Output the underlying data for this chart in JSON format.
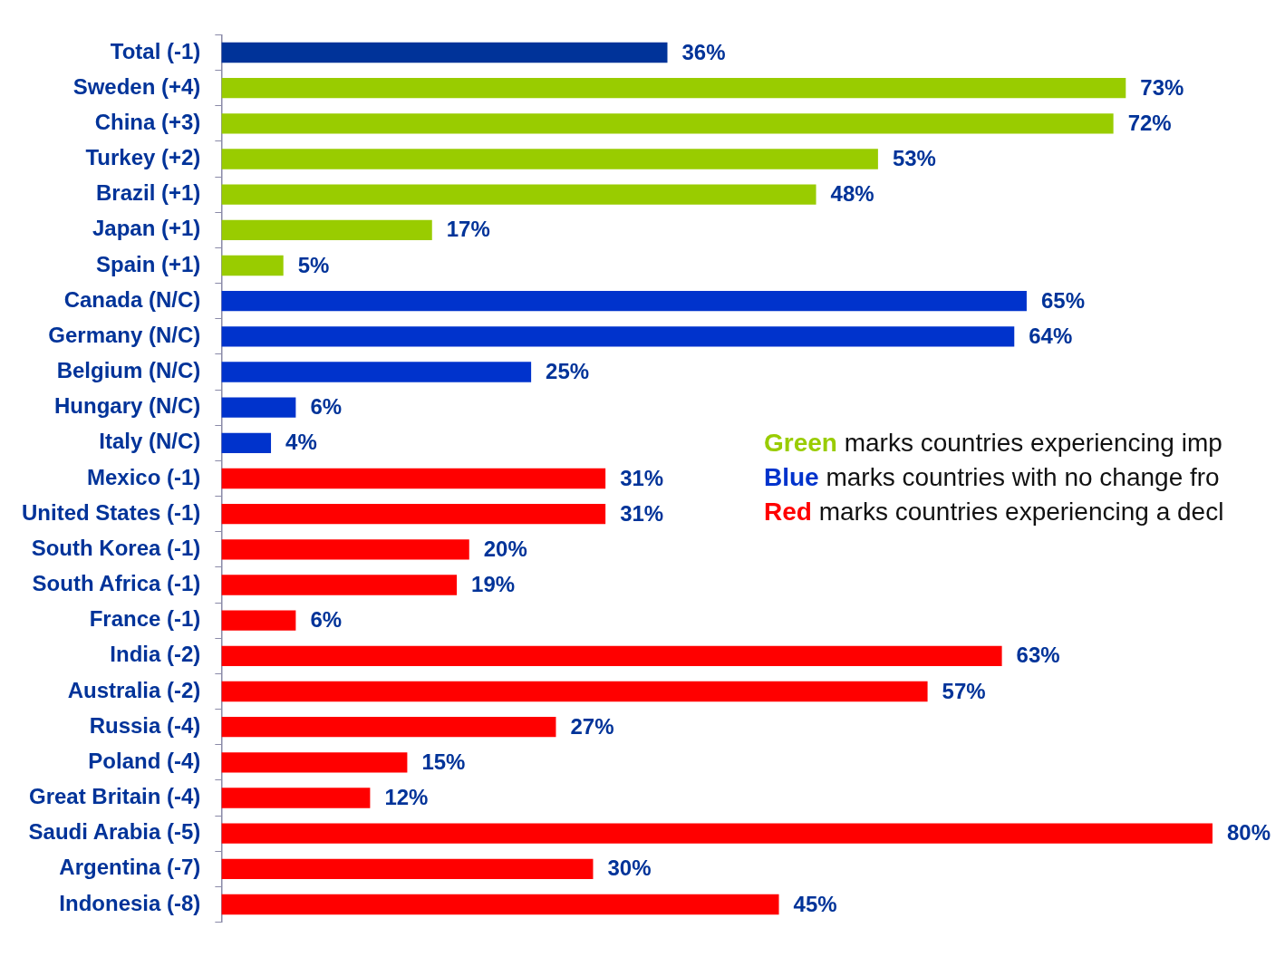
{
  "chart_data": {
    "type": "bar",
    "orientation": "horizontal",
    "tick_labels": "y",
    "legend": "right",
    "categories": [
      "Total (-1)",
      "Sweden (+4)",
      "China (+3)",
      "Turkey (+2)",
      "Brazil (+1)",
      "Japan (+1)",
      "Spain (+1)",
      "Canada (N/C)",
      "Germany (N/C)",
      "Belgium (N/C)",
      "Hungary (N/C)",
      "Italy (N/C)",
      "Mexico (-1)",
      "United States (-1)",
      "South Korea (-1)",
      "South Africa (-1)",
      "France (-1)",
      "India (-2)",
      "Australia (-2)",
      "Russia (-4)",
      "Poland (-4)",
      "Great Britain (-4)",
      "Saudi Arabia (-5)",
      "Argentina (-7)",
      "Indonesia (-8)"
    ],
    "series": [
      {
        "color": "#003399",
        "values": [
          36,
          null,
          null,
          null,
          null,
          null,
          null,
          null,
          null,
          null,
          null,
          null,
          null,
          null,
          null,
          null,
          null,
          null,
          null,
          null,
          null,
          null,
          null,
          null,
          null
        ],
        "value_labels": [
          "36%",
          null,
          null,
          null,
          null,
          null,
          null,
          null,
          null,
          null,
          null,
          null,
          null,
          null,
          null,
          null,
          null,
          null,
          null,
          null,
          null,
          null,
          null,
          null,
          null
        ]
      },
      {
        "name": "Green marks countries experiencing imp",
        "color": "#99cc00",
        "values": [
          null,
          73,
          72,
          53,
          48,
          17,
          5,
          null,
          null,
          null,
          null,
          null,
          null,
          null,
          null,
          null,
          null,
          null,
          null,
          null,
          null,
          null,
          null,
          null,
          null
        ],
        "value_labels": [
          null,
          "73%",
          "72%",
          "53%",
          "48%",
          "17%",
          "5%",
          null,
          null,
          null,
          null,
          null,
          null,
          null,
          null,
          null,
          null,
          null,
          null,
          null,
          null,
          null,
          null,
          null,
          null
        ]
      },
      {
        "name": "Blue marks countries with no change fro",
        "color": "#0033cc",
        "values": [
          null,
          null,
          null,
          null,
          null,
          null,
          null,
          65,
          64,
          25,
          6,
          4,
          null,
          null,
          null,
          null,
          null,
          null,
          null,
          null,
          null,
          null,
          null,
          null,
          null
        ],
        "value_labels": [
          null,
          null,
          null,
          null,
          null,
          null,
          null,
          "65%",
          "64%",
          "25%",
          "6%",
          "4%",
          null,
          null,
          null,
          null,
          null,
          null,
          null,
          null,
          null,
          null,
          null,
          null,
          null
        ]
      },
      {
        "name": "Red marks countries experiencing a decl",
        "color": "#ff0000",
        "values": [
          null,
          null,
          null,
          null,
          null,
          null,
          null,
          null,
          null,
          null,
          null,
          null,
          31,
          31,
          20,
          19,
          6,
          63,
          57,
          27,
          15,
          12,
          80,
          30,
          45
        ],
        "value_labels": [
          null,
          null,
          null,
          null,
          null,
          null,
          null,
          null,
          null,
          null,
          null,
          null,
          "31%",
          "31%",
          "20%",
          "19%",
          "6%",
          "63%",
          "57%",
          "27%",
          "15%",
          "12%",
          "80%",
          "30%",
          "45%"
        ]
      }
    ]
  }
}
